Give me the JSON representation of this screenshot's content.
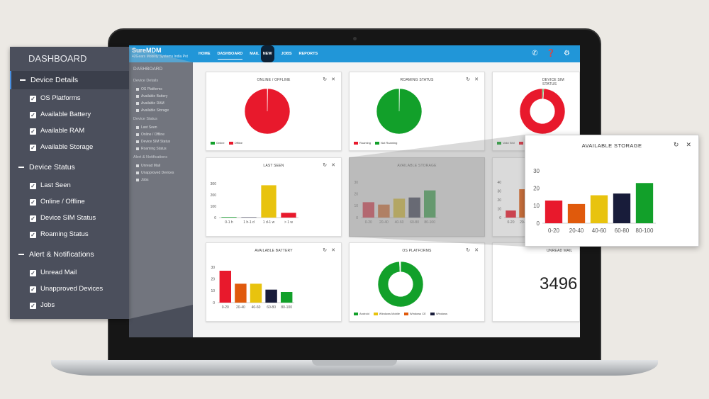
{
  "app": {
    "brand": "SureMDM",
    "brand_sub": "42Gears Mobility Systems India Pvt",
    "nav": [
      {
        "label": "HOME"
      },
      {
        "label": "DASHBOARD",
        "active": true
      },
      {
        "label": "MAIL",
        "badge": "NEW"
      },
      {
        "label": "JOBS"
      },
      {
        "label": "REPORTS"
      }
    ],
    "icons": [
      "phone-icon",
      "help-icon",
      "settings-icon"
    ]
  },
  "sidebar": {
    "title": "DASHBOARD",
    "sections": [
      {
        "label": "Device Details",
        "active": true,
        "items": [
          "OS Platforms",
          "Available Battery",
          "Available RAM",
          "Available Storage"
        ]
      },
      {
        "label": "Device Status",
        "items": [
          "Last Seen",
          "Online / Offline",
          "Device SIM Status",
          "Roaming Status"
        ]
      },
      {
        "label": "Alert & Notifications",
        "items": [
          "Unread Mail",
          "Unapproved Devices",
          "Jobs"
        ]
      }
    ]
  },
  "cards": {
    "online_offline": {
      "title": "ONLINE / OFFLINE",
      "legend": [
        "Online",
        "Offline"
      ]
    },
    "roaming": {
      "title": "ROAMING STATUS",
      "legend": [
        "Roaming",
        "Not Roaming"
      ]
    },
    "sim": {
      "title": "DEVICE SIM STATUS",
      "legend": [
        "Valid SIM",
        ""
      ]
    },
    "last_seen": {
      "title": "LAST SEEN"
    },
    "storage": {
      "title": "AVAILABLE STORAGE"
    },
    "ram": {
      "title": ""
    },
    "battery": {
      "title": "AVAILABLE BATTERY"
    },
    "os": {
      "title": "OS PLATFORMS",
      "legend": [
        "Android",
        "Windows Mobile",
        "Windows CE",
        "Windows"
      ]
    },
    "mail": {
      "title": "UNREAD MAIL",
      "value": "3496"
    }
  },
  "colors": {
    "topbar": "#2196d8",
    "red": "#e8192c",
    "green": "#12a02a",
    "orange": "#e05a0c",
    "yellow": "#e8c30e",
    "navy": "#181c3a",
    "sidebar": "#4b4f5c"
  },
  "chart_data": [
    {
      "name_ref": "last_seen",
      "type": "bar",
      "categories": [
        "0-1 h",
        "1 h-1 d",
        "1 d-1 w",
        "> 1 w"
      ],
      "values": [
        5,
        3,
        285,
        42
      ],
      "colors": [
        "#12a02a",
        "#181c3a",
        "#e8c30e",
        "#e8192c"
      ],
      "ylim": [
        0,
        300
      ],
      "yticks": [
        0,
        100,
        200,
        300
      ]
    },
    {
      "name_ref": "storage",
      "type": "bar",
      "categories": [
        "0-20",
        "20-40",
        "40-60",
        "60-80",
        "80-100"
      ],
      "values": [
        13,
        11,
        16,
        17,
        23
      ],
      "colors": [
        "#e8192c",
        "#e05a0c",
        "#e8c30e",
        "#181c3a",
        "#12a02a"
      ],
      "ylim": [
        0,
        30
      ],
      "yticks": [
        0,
        10,
        20,
        30
      ]
    },
    {
      "name_ref": "battery",
      "type": "bar",
      "categories": [
        "0-20",
        "20-40",
        "40-60",
        "60-80",
        "80-100"
      ],
      "values": [
        27,
        16,
        16,
        11,
        9
      ],
      "colors": [
        "#e8192c",
        "#e05a0c",
        "#e8c30e",
        "#181c3a",
        "#12a02a"
      ],
      "ylim": [
        0,
        30
      ],
      "yticks": [
        0,
        10,
        20,
        30
      ]
    },
    {
      "name_ref": "ram",
      "type": "bar",
      "categories": [
        "0-20",
        "20-40"
      ],
      "values": [
        8,
        32
      ],
      "colors": [
        "#e8192c",
        "#e05a0c"
      ],
      "ylim": [
        0,
        40
      ],
      "yticks": [
        0,
        10,
        20,
        30,
        40
      ]
    },
    {
      "name_ref": "online_offline",
      "type": "pie",
      "labels": [
        "Online",
        "Offline"
      ],
      "values": [
        0.3,
        99.7
      ],
      "colors": [
        "#12a02a",
        "#e8192c"
      ]
    },
    {
      "name_ref": "roaming",
      "type": "pie",
      "labels": [
        "Roaming",
        "Not Roaming"
      ],
      "values": [
        0.3,
        99.7
      ],
      "colors": [
        "#e8192c",
        "#12a02a"
      ]
    },
    {
      "name_ref": "os",
      "type": "pie",
      "labels": [
        "Android",
        "Windows Mobile",
        "Windows CE",
        "Windows"
      ],
      "values": [
        99.2,
        0.3,
        0.3,
        0.2
      ],
      "colors": [
        "#12a02a",
        "#e8c30e",
        "#e05a0c",
        "#181c3a"
      ],
      "donut": true
    },
    {
      "name_ref": "sim",
      "type": "pie",
      "labels": [
        "Valid SIM",
        ""
      ],
      "values": [
        1,
        99
      ],
      "colors": [
        "#12a02a",
        "#e8192c"
      ],
      "donut": true
    }
  ]
}
